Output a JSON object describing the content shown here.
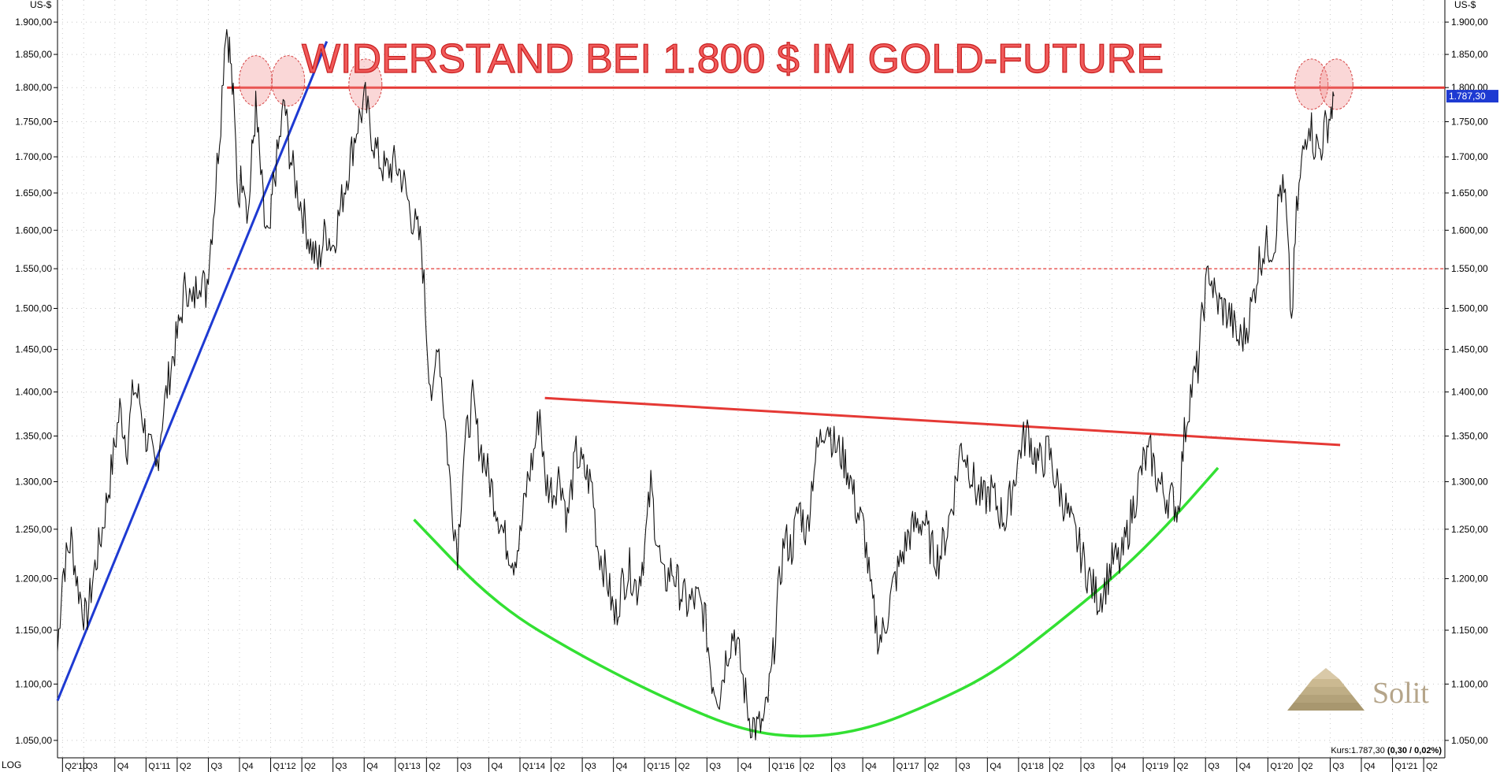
{
  "chart_data": {
    "type": "line",
    "title": "WIDERSTAND BEI 1.800 $ IM GOLD-FUTURE",
    "ylabel_left": "US-$",
    "ylabel_right": "US-$",
    "scale_label": "LOG",
    "ylim": [
      1035,
      1935
    ],
    "xlim": [
      2010.29,
      2021.42
    ],
    "y_ticks": [
      "1.050,00",
      "1.100,00",
      "1.150,00",
      "1.200,00",
      "1.250,00",
      "1.300,00",
      "1.350,00",
      "1.400,00",
      "1.450,00",
      "1.500,00",
      "1.550,00",
      "1.600,00",
      "1.650,00",
      "1.700,00",
      "1.750,00",
      "1.800,00",
      "1.850,00",
      "1.900,00"
    ],
    "x_ticks": [
      {
        "t": 2010.33,
        "label": "Q2'10"
      },
      {
        "t": 2010.5,
        "label": "Q3"
      },
      {
        "t": 2010.75,
        "label": "Q4"
      },
      {
        "t": 2011.0,
        "label": "Q1'11"
      },
      {
        "t": 2011.25,
        "label": "Q2"
      },
      {
        "t": 2011.5,
        "label": "Q3"
      },
      {
        "t": 2011.75,
        "label": "Q4"
      },
      {
        "t": 2012.0,
        "label": "Q1'12"
      },
      {
        "t": 2012.25,
        "label": "Q2"
      },
      {
        "t": 2012.5,
        "label": "Q3"
      },
      {
        "t": 2012.75,
        "label": "Q4"
      },
      {
        "t": 2013.0,
        "label": "Q1'13"
      },
      {
        "t": 2013.25,
        "label": "Q2"
      },
      {
        "t": 2013.5,
        "label": "Q3"
      },
      {
        "t": 2013.75,
        "label": "Q4"
      },
      {
        "t": 2014.0,
        "label": "Q1'14"
      },
      {
        "t": 2014.25,
        "label": "Q2"
      },
      {
        "t": 2014.5,
        "label": "Q3"
      },
      {
        "t": 2014.75,
        "label": "Q4"
      },
      {
        "t": 2015.0,
        "label": "Q1'15"
      },
      {
        "t": 2015.25,
        "label": "Q2"
      },
      {
        "t": 2015.5,
        "label": "Q3"
      },
      {
        "t": 2015.75,
        "label": "Q4"
      },
      {
        "t": 2016.0,
        "label": "Q1'16"
      },
      {
        "t": 2016.25,
        "label": "Q2"
      },
      {
        "t": 2016.5,
        "label": "Q3"
      },
      {
        "t": 2016.75,
        "label": "Q4"
      },
      {
        "t": 2017.0,
        "label": "Q1'17"
      },
      {
        "t": 2017.25,
        "label": "Q2"
      },
      {
        "t": 2017.5,
        "label": "Q3"
      },
      {
        "t": 2017.75,
        "label": "Q4"
      },
      {
        "t": 2018.0,
        "label": "Q1'18"
      },
      {
        "t": 2018.25,
        "label": "Q2"
      },
      {
        "t": 2018.5,
        "label": "Q3"
      },
      {
        "t": 2018.75,
        "label": "Q4"
      },
      {
        "t": 2019.0,
        "label": "Q1'19"
      },
      {
        "t": 2019.25,
        "label": "Q2"
      },
      {
        "t": 2019.5,
        "label": "Q3"
      },
      {
        "t": 2019.75,
        "label": "Q4"
      },
      {
        "t": 2020.0,
        "label": "Q1'20"
      },
      {
        "t": 2020.25,
        "label": "Q2"
      },
      {
        "t": 2020.5,
        "label": "Q3"
      },
      {
        "t": 2020.75,
        "label": "Q4"
      },
      {
        "t": 2021.0,
        "label": "Q1'21"
      },
      {
        "t": 2021.25,
        "label": "Q2"
      }
    ],
    "price_series": [
      [
        2010.29,
        1130
      ],
      [
        2010.33,
        1205
      ],
      [
        2010.4,
        1240
      ],
      [
        2010.45,
        1195
      ],
      [
        2010.52,
        1158
      ],
      [
        2010.58,
        1205
      ],
      [
        2010.65,
        1250
      ],
      [
        2010.72,
        1310
      ],
      [
        2010.79,
        1380
      ],
      [
        2010.85,
        1340
      ],
      [
        2010.9,
        1405
      ],
      [
        2010.95,
        1390
      ],
      [
        2011.0,
        1350
      ],
      [
        2011.08,
        1310
      ],
      [
        2011.13,
        1370
      ],
      [
        2011.2,
        1430
      ],
      [
        2011.27,
        1480
      ],
      [
        2011.32,
        1535
      ],
      [
        2011.37,
        1500
      ],
      [
        2011.43,
        1545
      ],
      [
        2011.48,
        1520
      ],
      [
        2011.55,
        1640
      ],
      [
        2011.6,
        1760
      ],
      [
        2011.64,
        1900
      ],
      [
        2011.67,
        1860
      ],
      [
        2011.7,
        1780
      ],
      [
        2011.74,
        1645
      ],
      [
        2011.78,
        1685
      ],
      [
        2011.82,
        1620
      ],
      [
        2011.85,
        1700
      ],
      [
        2011.88,
        1770
      ],
      [
        2011.91,
        1700
      ],
      [
        2011.95,
        1610
      ],
      [
        2011.99,
        1580
      ],
      [
        2012.02,
        1660
      ],
      [
        2012.07,
        1720
      ],
      [
        2012.11,
        1780
      ],
      [
        2012.15,
        1710
      ],
      [
        2012.19,
        1670
      ],
      [
        2012.25,
        1630
      ],
      [
        2012.32,
        1580
      ],
      [
        2012.38,
        1555
      ],
      [
        2012.44,
        1600
      ],
      [
        2012.5,
        1580
      ],
      [
        2012.56,
        1630
      ],
      [
        2012.63,
        1690
      ],
      [
        2012.7,
        1750
      ],
      [
        2012.76,
        1780
      ],
      [
        2012.8,
        1740
      ],
      [
        2012.86,
        1700
      ],
      [
        2012.92,
        1680
      ],
      [
        2013.0,
        1690
      ],
      [
        2013.06,
        1670
      ],
      [
        2013.12,
        1625
      ],
      [
        2013.17,
        1600
      ],
      [
        2013.21,
        1580
      ],
      [
        2013.26,
        1450
      ],
      [
        2013.3,
        1380
      ],
      [
        2013.34,
        1470
      ],
      [
        2013.38,
        1400
      ],
      [
        2013.45,
        1280
      ],
      [
        2013.5,
        1230
      ],
      [
        2013.55,
        1330
      ],
      [
        2013.62,
        1390
      ],
      [
        2013.66,
        1350
      ],
      [
        2013.7,
        1330
      ],
      [
        2013.76,
        1300
      ],
      [
        2013.82,
        1270
      ],
      [
        2013.88,
        1240
      ],
      [
        2013.95,
        1220
      ],
      [
        2014.0,
        1240
      ],
      [
        2014.06,
        1300
      ],
      [
        2014.11,
        1330
      ],
      [
        2014.16,
        1380
      ],
      [
        2014.2,
        1300
      ],
      [
        2014.27,
        1290
      ],
      [
        2014.32,
        1310
      ],
      [
        2014.38,
        1260
      ],
      [
        2014.45,
        1330
      ],
      [
        2014.52,
        1310
      ],
      [
        2014.58,
        1295
      ],
      [
        2014.62,
        1235
      ],
      [
        2014.7,
        1200
      ],
      [
        2014.76,
        1160
      ],
      [
        2014.82,
        1195
      ],
      [
        2014.88,
        1210
      ],
      [
        2014.94,
        1190
      ],
      [
        2015.0,
        1230
      ],
      [
        2015.05,
        1295
      ],
      [
        2015.09,
        1250
      ],
      [
        2015.15,
        1195
      ],
      [
        2015.22,
        1210
      ],
      [
        2015.28,
        1190
      ],
      [
        2015.34,
        1175
      ],
      [
        2015.42,
        1180
      ],
      [
        2015.48,
        1165
      ],
      [
        2015.54,
        1105
      ],
      [
        2015.6,
        1090
      ],
      [
        2015.66,
        1130
      ],
      [
        2015.72,
        1150
      ],
      [
        2015.78,
        1110
      ],
      [
        2015.84,
        1070
      ],
      [
        2015.9,
        1060
      ],
      [
        2015.96,
        1065
      ],
      [
        2016.02,
        1110
      ],
      [
        2016.07,
        1180
      ],
      [
        2016.12,
        1240
      ],
      [
        2016.18,
        1230
      ],
      [
        2016.24,
        1275
      ],
      [
        2016.3,
        1245
      ],
      [
        2016.36,
        1320
      ],
      [
        2016.42,
        1350
      ],
      [
        2016.46,
        1370
      ],
      [
        2016.52,
        1340
      ],
      [
        2016.58,
        1330
      ],
      [
        2016.64,
        1310
      ],
      [
        2016.7,
        1270
      ],
      [
        2016.76,
        1250
      ],
      [
        2016.82,
        1180
      ],
      [
        2016.88,
        1140
      ],
      [
        2016.92,
        1150
      ],
      [
        2017.0,
        1195
      ],
      [
        2017.06,
        1220
      ],
      [
        2017.12,
        1245
      ],
      [
        2017.18,
        1255
      ],
      [
        2017.24,
        1260
      ],
      [
        2017.3,
        1230
      ],
      [
        2017.36,
        1220
      ],
      [
        2017.42,
        1245
      ],
      [
        2017.48,
        1285
      ],
      [
        2017.54,
        1340
      ],
      [
        2017.6,
        1320
      ],
      [
        2017.66,
        1290
      ],
      [
        2017.72,
        1280
      ],
      [
        2017.78,
        1290
      ],
      [
        2017.84,
        1270
      ],
      [
        2017.9,
        1260
      ],
      [
        2017.96,
        1300
      ],
      [
        2018.02,
        1340
      ],
      [
        2018.08,
        1355
      ],
      [
        2018.12,
        1330
      ],
      [
        2018.18,
        1320
      ],
      [
        2018.24,
        1335
      ],
      [
        2018.3,
        1300
      ],
      [
        2018.36,
        1280
      ],
      [
        2018.42,
        1255
      ],
      [
        2018.48,
        1235
      ],
      [
        2018.54,
        1210
      ],
      [
        2018.6,
        1190
      ],
      [
        2018.64,
        1180
      ],
      [
        2018.7,
        1195
      ],
      [
        2018.76,
        1220
      ],
      [
        2018.82,
        1215
      ],
      [
        2018.88,
        1250
      ],
      [
        2018.94,
        1285
      ],
      [
        2019.0,
        1320
      ],
      [
        2019.06,
        1330
      ],
      [
        2019.12,
        1300
      ],
      [
        2019.18,
        1285
      ],
      [
        2019.24,
        1280
      ],
      [
        2019.28,
        1270
      ],
      [
        2019.33,
        1350
      ],
      [
        2019.38,
        1400
      ],
      [
        2019.44,
        1430
      ],
      [
        2019.48,
        1500
      ],
      [
        2019.53,
        1550
      ],
      [
        2019.58,
        1510
      ],
      [
        2019.64,
        1500
      ],
      [
        2019.7,
        1490
      ],
      [
        2019.76,
        1460
      ],
      [
        2019.82,
        1470
      ],
      [
        2019.88,
        1510
      ],
      [
        2019.93,
        1560
      ],
      [
        2019.98,
        1580
      ],
      [
        2020.05,
        1580
      ],
      [
        2020.1,
        1660
      ],
      [
        2020.14,
        1640
      ],
      [
        2020.19,
        1480
      ],
      [
        2020.23,
        1620
      ],
      [
        2020.28,
        1700
      ],
      [
        2020.33,
        1760
      ],
      [
        2020.37,
        1720
      ],
      [
        2020.42,
        1710
      ],
      [
        2020.46,
        1740
      ],
      [
        2020.5,
        1760
      ],
      [
        2020.53,
        1787.3
      ]
    ],
    "annotations": {
      "resistance_line": {
        "y": 1800,
        "t0": 2011.65,
        "t1": 2021.42,
        "color": "#e53935"
      },
      "support_dashed": {
        "y": 1550,
        "t0": 2011.65,
        "t1": 2021.42,
        "color": "#e53935"
      },
      "uptrend": {
        "points": [
          [
            2010.29,
            1085
          ],
          [
            2012.45,
            1870
          ]
        ],
        "color": "#1e3ad2"
      },
      "neckline": {
        "points": [
          [
            2014.2,
            1393
          ],
          [
            2020.58,
            1340
          ]
        ],
        "color": "#e53935"
      },
      "bowl": {
        "points": [
          [
            2013.15,
            1260
          ],
          [
            2013.8,
            1175
          ],
          [
            2014.5,
            1125
          ],
          [
            2015.2,
            1085
          ],
          [
            2015.8,
            1058
          ],
          [
            2016.3,
            1052
          ],
          [
            2016.8,
            1060
          ],
          [
            2017.3,
            1082
          ],
          [
            2017.8,
            1110
          ],
          [
            2018.3,
            1155
          ],
          [
            2018.8,
            1205
          ],
          [
            2019.2,
            1255
          ],
          [
            2019.6,
            1315
          ]
        ],
        "color": "#33e033"
      },
      "circles": [
        {
          "t": 2011.88,
          "y": 1810
        },
        {
          "t": 2012.14,
          "y": 1810
        },
        {
          "t": 2012.76,
          "y": 1805
        },
        {
          "t": 2020.35,
          "y": 1805
        },
        {
          "t": 2020.55,
          "y": 1805
        }
      ]
    },
    "current_price_label": "1.787,30",
    "kurs_text": "Kurs:1.787,30",
    "kurs_change": "(0,30 / 0,02%)",
    "logo": "Solit"
  }
}
